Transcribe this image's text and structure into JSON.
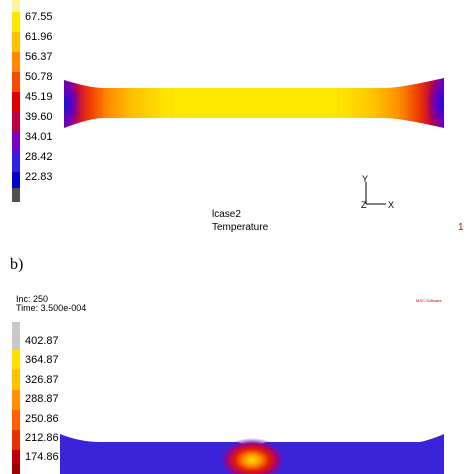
{
  "top_panel": {
    "legend": {
      "values": [
        "67.55",
        "61.96",
        "56.37",
        "50.78",
        "45.19",
        "39.60",
        "34.01",
        "28.42",
        "22.83"
      ],
      "colors": [
        "#ffe800",
        "#ffc000",
        "#ff8c00",
        "#f54a00",
        "#e00000",
        "#c00040",
        "#7a00c8",
        "#3020e0",
        "#0000c8",
        "#404040"
      ]
    },
    "axis": {
      "y": "Y",
      "z": "Z",
      "x": "X"
    },
    "case_label": "lcase2",
    "quantity_label": "Temperature",
    "page_index": "1"
  },
  "bottom_panel": {
    "panel_label": "b)",
    "inc_label": "Inc:  250",
    "time_label": "Time:  3.500e-004",
    "logo_text": "MSC.Software",
    "legend": {
      "values": [
        "402.87",
        "364.87",
        "326.87",
        "288.87",
        "250.86",
        "212.86",
        "174.86"
      ],
      "colors": [
        "#c8c8c8",
        "#ffe000",
        "#ffc000",
        "#ff9000",
        "#ff6000",
        "#e83000",
        "#c00000",
        "#a00000"
      ]
    }
  }
}
